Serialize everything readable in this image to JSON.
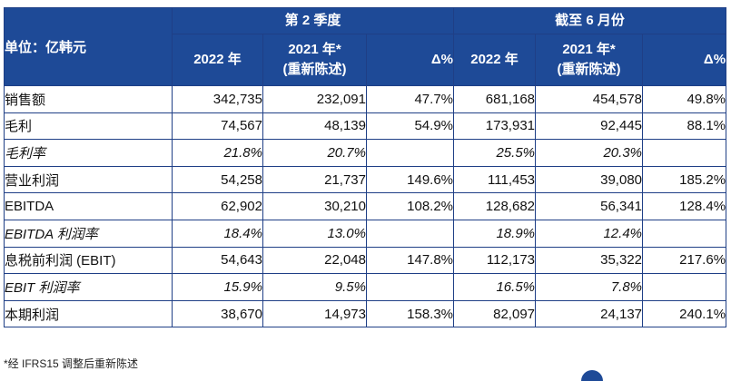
{
  "header": {
    "unit_label": "单位：亿韩元",
    "group_q2": "第 2 季度",
    "group_ytd": "截至 6 月份",
    "col_2022": "2022 年",
    "col_2021_line1": "2021 年*",
    "col_2021_line2": "(重新陈述)",
    "col_delta": "Δ%"
  },
  "rows": [
    {
      "label": "销售额",
      "italic": false,
      "q2_2022": "342,735",
      "q2_2021": "232,091",
      "q2_delta": "47.7%",
      "h1_2022": "681,168",
      "h1_2021": "454,578",
      "h1_delta": "49.8%"
    },
    {
      "label": "毛利",
      "italic": false,
      "q2_2022": "74,567",
      "q2_2021": "48,139",
      "q2_delta": "54.9%",
      "h1_2022": "173,931",
      "h1_2021": "92,445",
      "h1_delta": "88.1%"
    },
    {
      "label": "毛利率",
      "italic": true,
      "q2_2022": "21.8%",
      "q2_2021": "20.7%",
      "q2_delta": "",
      "h1_2022": "25.5%",
      "h1_2021": "20.3%",
      "h1_delta": ""
    },
    {
      "label": "营业利润",
      "italic": false,
      "q2_2022": "54,258",
      "q2_2021": "21,737",
      "q2_delta": "149.6%",
      "h1_2022": "111,453",
      "h1_2021": "39,080",
      "h1_delta": "185.2%"
    },
    {
      "label": "EBITDA",
      "italic": false,
      "q2_2022": "62,902",
      "q2_2021": "30,210",
      "q2_delta": "108.2%",
      "h1_2022": "128,682",
      "h1_2021": "56,341",
      "h1_delta": "128.4%"
    },
    {
      "label": "EBITDA 利润率",
      "italic": true,
      "q2_2022": "18.4%",
      "q2_2021": "13.0%",
      "q2_delta": "",
      "h1_2022": "18.9%",
      "h1_2021": "12.4%",
      "h1_delta": ""
    },
    {
      "label": "息税前利润 (EBIT)",
      "italic": false,
      "q2_2022": "54,643",
      "q2_2021": "22,048",
      "q2_delta": "147.8%",
      "h1_2022": "112,173",
      "h1_2021": "35,322",
      "h1_delta": "217.6%"
    },
    {
      "label": "EBIT 利润率",
      "italic": true,
      "q2_2022": "15.9%",
      "q2_2021": "9.5%",
      "q2_delta": "",
      "h1_2022": "16.5%",
      "h1_2021": "7.8%",
      "h1_delta": ""
    },
    {
      "label": "本期利润",
      "italic": false,
      "q2_2022": "38,670",
      "q2_2021": "14,973",
      "q2_delta": "158.3%",
      "h1_2022": "82,097",
      "h1_2021": "24,137",
      "h1_delta": "240.1%"
    }
  ],
  "footnote": "*经 IFRS15 调整后重新陈述",
  "colors": {
    "header_bg": "#1e4a97",
    "border": "#1f3f86"
  }
}
